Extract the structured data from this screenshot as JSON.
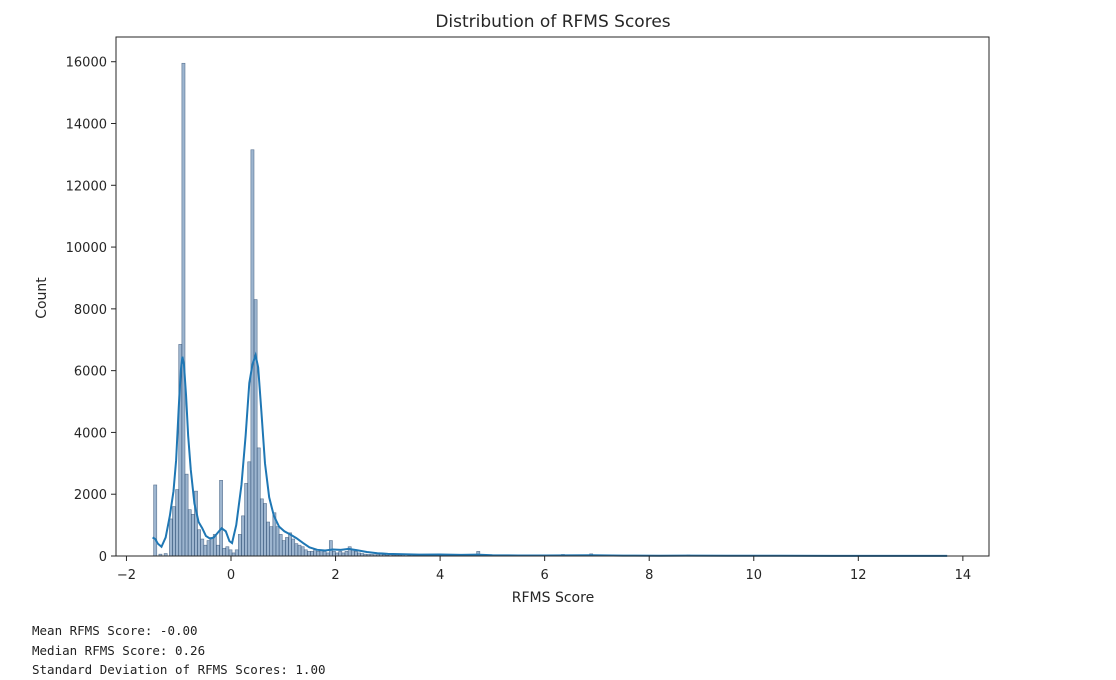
{
  "chart_data": {
    "type": "bar",
    "title": "Distribution of RFMS Scores",
    "xlabel": "RFMS Score",
    "ylabel": "Count",
    "xlim": [
      -2.2,
      14.5
    ],
    "ylim": [
      0,
      16800
    ],
    "xticks": [
      -2,
      0,
      2,
      4,
      6,
      8,
      10,
      12,
      14
    ],
    "xtick_labels": [
      "−2",
      "0",
      "2",
      "4",
      "6",
      "8",
      "10",
      "12",
      "14"
    ],
    "yticks": [
      0,
      2000,
      4000,
      6000,
      8000,
      10000,
      12000,
      14000,
      16000
    ],
    "grid": false,
    "bar_color": "#4c78a8",
    "kde_color": "#1f77b4",
    "bins": [
      {
        "x": -1.45,
        "count": 2300
      },
      {
        "x": -1.35,
        "count": 60
      },
      {
        "x": -1.25,
        "count": 80
      },
      {
        "x": -1.15,
        "count": 1200
      },
      {
        "x": -1.09,
        "count": 1600
      },
      {
        "x": -1.03,
        "count": 2150
      },
      {
        "x": -0.97,
        "count": 6850
      },
      {
        "x": -0.91,
        "count": 15950
      },
      {
        "x": -0.85,
        "count": 2650
      },
      {
        "x": -0.79,
        "count": 1500
      },
      {
        "x": -0.73,
        "count": 1350
      },
      {
        "x": -0.67,
        "count": 2100
      },
      {
        "x": -0.61,
        "count": 850
      },
      {
        "x": -0.55,
        "count": 550
      },
      {
        "x": -0.49,
        "count": 350
      },
      {
        "x": -0.43,
        "count": 500
      },
      {
        "x": -0.37,
        "count": 600
      },
      {
        "x": -0.31,
        "count": 700
      },
      {
        "x": -0.25,
        "count": 350
      },
      {
        "x": -0.19,
        "count": 2450
      },
      {
        "x": -0.13,
        "count": 250
      },
      {
        "x": -0.07,
        "count": 300
      },
      {
        "x": -0.01,
        "count": 200
      },
      {
        "x": 0.05,
        "count": 100
      },
      {
        "x": 0.11,
        "count": 200
      },
      {
        "x": 0.17,
        "count": 700
      },
      {
        "x": 0.23,
        "count": 1300
      },
      {
        "x": 0.29,
        "count": 2350
      },
      {
        "x": 0.35,
        "count": 3050
      },
      {
        "x": 0.41,
        "count": 13150
      },
      {
        "x": 0.47,
        "count": 8300
      },
      {
        "x": 0.53,
        "count": 3500
      },
      {
        "x": 0.59,
        "count": 1850
      },
      {
        "x": 0.65,
        "count": 1700
      },
      {
        "x": 0.71,
        "count": 1100
      },
      {
        "x": 0.77,
        "count": 950
      },
      {
        "x": 0.83,
        "count": 1400
      },
      {
        "x": 0.89,
        "count": 950
      },
      {
        "x": 0.95,
        "count": 700
      },
      {
        "x": 1.01,
        "count": 500
      },
      {
        "x": 1.07,
        "count": 600
      },
      {
        "x": 1.13,
        "count": 750
      },
      {
        "x": 1.19,
        "count": 550
      },
      {
        "x": 1.25,
        "count": 400
      },
      {
        "x": 1.31,
        "count": 350
      },
      {
        "x": 1.37,
        "count": 300
      },
      {
        "x": 1.43,
        "count": 200
      },
      {
        "x": 1.49,
        "count": 150
      },
      {
        "x": 1.55,
        "count": 150
      },
      {
        "x": 1.61,
        "count": 200
      },
      {
        "x": 1.67,
        "count": 150
      },
      {
        "x": 1.73,
        "count": 200
      },
      {
        "x": 1.79,
        "count": 150
      },
      {
        "x": 1.85,
        "count": 100
      },
      {
        "x": 1.91,
        "count": 500
      },
      {
        "x": 1.97,
        "count": 150
      },
      {
        "x": 2.03,
        "count": 100
      },
      {
        "x": 2.09,
        "count": 150
      },
      {
        "x": 2.15,
        "count": 100
      },
      {
        "x": 2.21,
        "count": 150
      },
      {
        "x": 2.27,
        "count": 300
      },
      {
        "x": 2.33,
        "count": 200
      },
      {
        "x": 2.39,
        "count": 150
      },
      {
        "x": 2.45,
        "count": 100
      },
      {
        "x": 2.51,
        "count": 80
      },
      {
        "x": 2.57,
        "count": 60
      },
      {
        "x": 2.63,
        "count": 50
      },
      {
        "x": 2.69,
        "count": 50
      },
      {
        "x": 2.75,
        "count": 40
      },
      {
        "x": 2.81,
        "count": 40
      },
      {
        "x": 2.87,
        "count": 60
      },
      {
        "x": 2.93,
        "count": 40
      },
      {
        "x": 2.99,
        "count": 30
      },
      {
        "x": 3.05,
        "count": 50
      },
      {
        "x": 3.11,
        "count": 30
      },
      {
        "x": 3.17,
        "count": 30
      },
      {
        "x": 3.23,
        "count": 30
      },
      {
        "x": 3.29,
        "count": 40
      },
      {
        "x": 3.41,
        "count": 30
      },
      {
        "x": 3.53,
        "count": 20
      },
      {
        "x": 3.65,
        "count": 20
      },
      {
        "x": 3.77,
        "count": 20
      },
      {
        "x": 3.89,
        "count": 30
      },
      {
        "x": 4.01,
        "count": 40
      },
      {
        "x": 4.13,
        "count": 20
      },
      {
        "x": 4.25,
        "count": 20
      },
      {
        "x": 4.37,
        "count": 20
      },
      {
        "x": 4.49,
        "count": 20
      },
      {
        "x": 4.73,
        "count": 150
      },
      {
        "x": 4.85,
        "count": 20
      },
      {
        "x": 5.09,
        "count": 20
      },
      {
        "x": 5.33,
        "count": 20
      },
      {
        "x": 5.57,
        "count": 20
      },
      {
        "x": 5.81,
        "count": 20
      },
      {
        "x": 6.05,
        "count": 20
      },
      {
        "x": 6.35,
        "count": 50
      },
      {
        "x": 6.65,
        "count": 20
      },
      {
        "x": 6.89,
        "count": 70
      },
      {
        "x": 7.25,
        "count": 20
      },
      {
        "x": 7.85,
        "count": 20
      },
      {
        "x": 8.45,
        "count": 20
      },
      {
        "x": 8.75,
        "count": 30
      },
      {
        "x": 9.35,
        "count": 15
      },
      {
        "x": 10.25,
        "count": 15
      },
      {
        "x": 11.45,
        "count": 10
      },
      {
        "x": 12.65,
        "count": 10
      },
      {
        "x": 13.55,
        "count": 10
      }
    ],
    "kde": [
      [
        -1.5,
        600
      ],
      [
        -1.45,
        550
      ],
      [
        -1.4,
        400
      ],
      [
        -1.33,
        300
      ],
      [
        -1.25,
        600
      ],
      [
        -1.17,
        1300
      ],
      [
        -1.1,
        2100
      ],
      [
        -1.05,
        3100
      ],
      [
        -1.0,
        4800
      ],
      [
        -0.96,
        6000
      ],
      [
        -0.93,
        6450
      ],
      [
        -0.9,
        6200
      ],
      [
        -0.86,
        5200
      ],
      [
        -0.82,
        3900
      ],
      [
        -0.77,
        2800
      ],
      [
        -0.7,
        1700
      ],
      [
        -0.62,
        1100
      ],
      [
        -0.55,
        900
      ],
      [
        -0.48,
        650
      ],
      [
        -0.4,
        560
      ],
      [
        -0.33,
        600
      ],
      [
        -0.25,
        760
      ],
      [
        -0.18,
        900
      ],
      [
        -0.1,
        800
      ],
      [
        -0.03,
        480
      ],
      [
        0.02,
        420
      ],
      [
        0.1,
        1000
      ],
      [
        0.2,
        2300
      ],
      [
        0.28,
        3900
      ],
      [
        0.35,
        5600
      ],
      [
        0.41,
        6200
      ],
      [
        0.47,
        6500
      ],
      [
        0.52,
        6100
      ],
      [
        0.58,
        4700
      ],
      [
        0.65,
        3000
      ],
      [
        0.73,
        1900
      ],
      [
        0.82,
        1300
      ],
      [
        0.92,
        950
      ],
      [
        1.02,
        800
      ],
      [
        1.13,
        700
      ],
      [
        1.25,
        580
      ],
      [
        1.38,
        420
      ],
      [
        1.5,
        280
      ],
      [
        1.65,
        200
      ],
      [
        1.8,
        180
      ],
      [
        1.95,
        210
      ],
      [
        2.1,
        200
      ],
      [
        2.25,
        230
      ],
      [
        2.4,
        190
      ],
      [
        2.6,
        130
      ],
      [
        2.8,
        90
      ],
      [
        3.0,
        70
      ],
      [
        3.3,
        55
      ],
      [
        3.6,
        45
      ],
      [
        4.0,
        50
      ],
      [
        4.4,
        35
      ],
      [
        4.7,
        45
      ],
      [
        5.0,
        25
      ],
      [
        5.5,
        18
      ],
      [
        6.0,
        15
      ],
      [
        6.4,
        22
      ],
      [
        6.9,
        25
      ],
      [
        7.5,
        12
      ],
      [
        8.2,
        10
      ],
      [
        8.7,
        14
      ],
      [
        9.5,
        8
      ],
      [
        10.5,
        6
      ],
      [
        11.5,
        5
      ],
      [
        12.5,
        4
      ],
      [
        13.7,
        3
      ]
    ]
  },
  "stats": {
    "mean": "Mean RFMS Score: -0.00",
    "median": "Median RFMS Score: 0.26",
    "std": "Standard Deviation of RFMS Scores: 1.00"
  }
}
